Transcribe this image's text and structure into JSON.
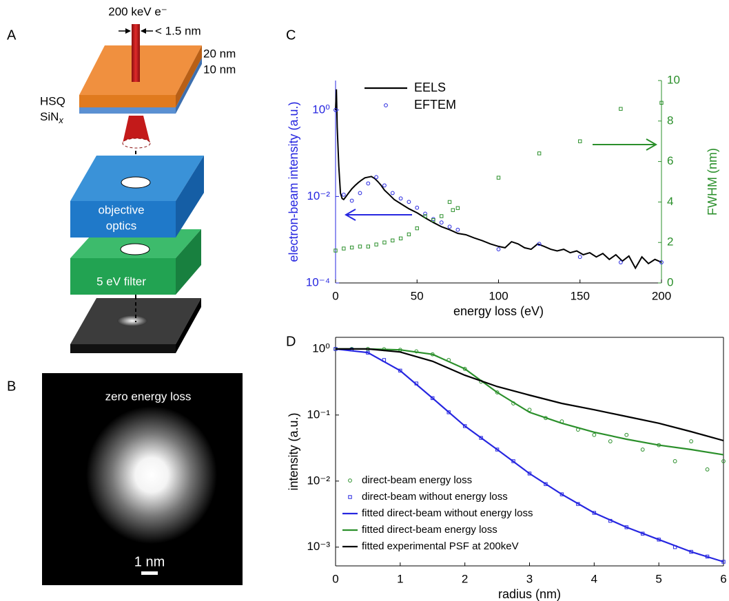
{
  "panel_labels": [
    "A",
    "B",
    "C",
    "D"
  ],
  "panel_a": {
    "beam": "200 keV e⁻",
    "beam_width": "< 1.5 nm",
    "layer_top": "20 nm",
    "layer_bottom": "10 nm",
    "hsq": "HSQ",
    "sin": "SiN",
    "sin_sub": "x",
    "optics_1": "objective",
    "optics_2": "optics",
    "filter": "5 eV filter"
  },
  "panel_b": {
    "caption": "zero energy loss",
    "scale": "1 nm"
  },
  "chart_data": [
    {
      "type": "line",
      "yscale": "log",
      "x_label": "energy loss (eV)",
      "y_label": "electron-beam intensity (a.u.)",
      "y2_label": "FWHM (nm)",
      "y_axis_color": "#2626e0",
      "y2_axis_color": "#2a8f2a",
      "legend": "upper left",
      "xlim": [
        0,
        200
      ],
      "xticks": [
        0,
        50,
        100,
        150,
        200
      ],
      "ylim": [
        0.0001,
        4.8
      ],
      "yticks": [
        {
          "value": 0.0001,
          "label": "10⁻⁴"
        },
        {
          "value": 0.01,
          "label": "10⁻²"
        },
        {
          "value": 1,
          "label": "10⁰"
        }
      ],
      "y2lim": [
        0,
        10
      ],
      "y2ticks": [
        0,
        2,
        4,
        6,
        8,
        10
      ],
      "series": [
        {
          "name": "EELS",
          "color": "#000000",
          "marker": "line",
          "x": [
            0,
            0.5,
            1,
            2,
            3,
            4,
            5,
            6,
            8,
            10,
            12,
            14,
            16,
            18,
            20,
            22,
            24,
            26,
            28,
            30,
            33,
            36,
            40,
            45,
            50,
            55,
            60,
            65,
            70,
            75,
            80,
            85,
            90,
            95,
            100,
            104,
            108,
            112,
            116,
            120,
            124,
            128,
            132,
            136,
            140,
            144,
            148,
            152,
            156,
            160,
            164,
            168,
            172,
            176,
            180,
            184,
            188,
            192,
            196,
            200
          ],
          "values": [
            1,
            3,
            0.4,
            0.05,
            0.012,
            0.009,
            0.0085,
            0.0095,
            0.012,
            0.015,
            0.018,
            0.021,
            0.024,
            0.027,
            0.028,
            0.029,
            0.026,
            0.022,
            0.018,
            0.014,
            0.011,
            0.0085,
            0.0068,
            0.0052,
            0.0042,
            0.0032,
            0.0025,
            0.002,
            0.0017,
            0.0014,
            0.0013,
            0.0011,
            0.00095,
            0.0008,
            0.0007,
            0.00065,
            0.0009,
            0.0008,
            0.00065,
            0.0006,
            0.0008,
            0.0007,
            0.0006,
            0.00055,
            0.0006,
            0.0005,
            0.00055,
            0.00045,
            0.0005,
            0.0004,
            0.00048,
            0.00035,
            0.00045,
            0.00032,
            0.00042,
            0.00022,
            0.0004,
            0.00028,
            0.00035,
            0.0003
          ]
        },
        {
          "name": "EFTEM",
          "color": "#2626e0",
          "marker": "circle",
          "x": [
            0,
            5,
            10,
            15,
            20,
            25,
            30,
            35,
            40,
            45,
            50,
            55,
            60,
            65,
            70,
            75,
            100,
            125,
            150,
            175,
            200
          ],
          "values": [
            1,
            0.011,
            0.008,
            0.012,
            0.02,
            0.028,
            0.018,
            0.012,
            0.009,
            0.0075,
            0.0055,
            0.004,
            0.003,
            0.0025,
            0.002,
            0.0017,
            0.0006,
            0.0008,
            0.0004,
            0.0003,
            0.0003
          ]
        },
        {
          "color": "#2a8f2a",
          "marker": "square",
          "axis": "y2",
          "x": [
            0,
            5,
            10,
            15,
            20,
            25,
            30,
            35,
            40,
            45,
            50,
            55,
            60,
            65,
            70,
            72,
            75,
            100,
            125,
            150,
            175,
            200
          ],
          "values": [
            1.6,
            1.7,
            1.75,
            1.8,
            1.8,
            1.9,
            2.0,
            2.1,
            2.2,
            2.4,
            2.7,
            3.3,
            3.1,
            3.3,
            4.0,
            3.6,
            3.7,
            5.2,
            6.4,
            7.0,
            8.6,
            8.9
          ]
        }
      ]
    },
    {
      "type": "line",
      "yscale": "log",
      "x_label": "radius (nm)",
      "y_label": "intensity (a.u.)",
      "legend": "lower left",
      "xlim": [
        0,
        6
      ],
      "xticks": [
        0,
        1,
        2,
        3,
        4,
        5,
        6
      ],
      "ylim": [
        0.00052,
        1.5
      ],
      "yticks": [
        {
          "value": 0.001,
          "label": "10⁻³"
        },
        {
          "value": 0.01,
          "label": "10⁻²"
        },
        {
          "value": 0.1,
          "label": "10⁻¹"
        },
        {
          "value": 1,
          "label": "10⁰"
        }
      ],
      "series": [
        {
          "name": "direct-beam energy loss",
          "color": "#2a8f2a",
          "marker": "circle",
          "x": [
            0,
            0.25,
            0.5,
            0.75,
            1,
            1.25,
            1.5,
            1.75,
            2,
            2.25,
            2.5,
            2.75,
            3,
            3.25,
            3.5,
            3.75,
            4,
            4.25,
            4.5,
            4.75,
            5,
            5.25,
            5.5,
            5.75,
            6
          ],
          "values": [
            1,
            1,
            1,
            0.99,
            0.97,
            0.92,
            0.83,
            0.68,
            0.5,
            0.32,
            0.22,
            0.15,
            0.12,
            0.09,
            0.08,
            0.06,
            0.05,
            0.04,
            0.05,
            0.03,
            0.035,
            0.02,
            0.04,
            0.015,
            0.02
          ]
        },
        {
          "name": "direct-beam without energy loss",
          "color": "#2626e0",
          "marker": "square",
          "x": [
            0,
            0.25,
            0.5,
            0.75,
            1,
            1.25,
            1.5,
            1.75,
            2,
            2.25,
            2.5,
            2.75,
            3,
            3.25,
            3.5,
            3.75,
            4,
            4.25,
            4.5,
            4.75,
            5,
            5.25,
            5.5,
            5.75,
            6
          ],
          "values": [
            1,
            0.98,
            0.88,
            0.68,
            0.47,
            0.3,
            0.18,
            0.11,
            0.068,
            0.045,
            0.03,
            0.02,
            0.013,
            0.009,
            0.0063,
            0.0045,
            0.0033,
            0.0025,
            0.002,
            0.0016,
            0.0013,
            0.001,
            0.00085,
            0.00072,
            0.0006
          ]
        },
        {
          "name": "fitted direct-beam without energy loss",
          "color": "#2626e0",
          "marker": "line",
          "x": [
            0,
            0.5,
            1,
            1.5,
            2,
            2.5,
            3,
            3.5,
            4,
            4.5,
            5,
            5.5,
            6
          ],
          "values": [
            1,
            0.88,
            0.47,
            0.18,
            0.068,
            0.03,
            0.013,
            0.0063,
            0.0033,
            0.002,
            0.0013,
            0.00085,
            0.0006
          ]
        },
        {
          "name": "fitted direct-beam energy loss",
          "color": "#2a8f2a",
          "marker": "line",
          "x": [
            0,
            0.5,
            1,
            1.5,
            2,
            2.5,
            3,
            3.5,
            4,
            4.5,
            5,
            5.5,
            6
          ],
          "values": [
            1,
            1,
            0.97,
            0.83,
            0.5,
            0.22,
            0.11,
            0.075,
            0.055,
            0.043,
            0.035,
            0.03,
            0.025
          ]
        },
        {
          "name": "fitted experimental PSF at 200keV",
          "color": "#000000",
          "marker": "line",
          "x": [
            0,
            0.5,
            1,
            1.5,
            2,
            2.5,
            3,
            3.5,
            4,
            4.5,
            5,
            5.5,
            6
          ],
          "values": [
            1,
            1,
            0.9,
            0.65,
            0.4,
            0.27,
            0.2,
            0.15,
            0.12,
            0.095,
            0.075,
            0.056,
            0.041
          ]
        }
      ]
    }
  ]
}
